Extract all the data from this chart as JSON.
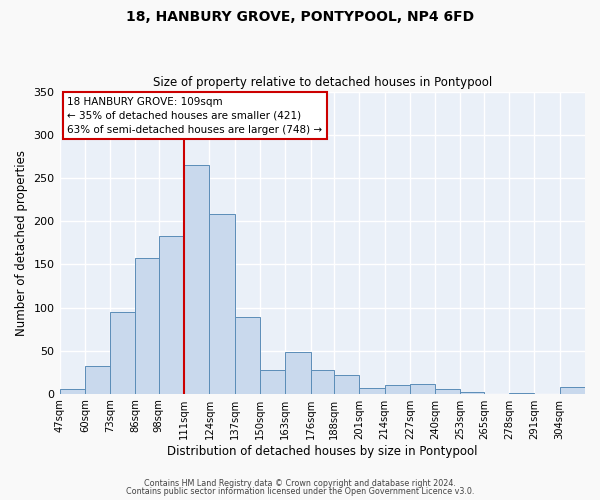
{
  "title": "18, HANBURY GROVE, PONTYPOOL, NP4 6FD",
  "subtitle": "Size of property relative to detached houses in Pontypool",
  "xlabel": "Distribution of detached houses by size in Pontypool",
  "ylabel": "Number of detached properties",
  "bin_labels": [
    "47sqm",
    "60sqm",
    "73sqm",
    "86sqm",
    "98sqm",
    "111sqm",
    "124sqm",
    "137sqm",
    "150sqm",
    "163sqm",
    "176sqm",
    "188sqm",
    "201sqm",
    "214sqm",
    "227sqm",
    "240sqm",
    "253sqm",
    "265sqm",
    "278sqm",
    "291sqm",
    "304sqm"
  ],
  "bar_heights": [
    6,
    32,
    95,
    158,
    183,
    265,
    208,
    89,
    28,
    48,
    28,
    22,
    7,
    10,
    11,
    5,
    2,
    0,
    1,
    0,
    8
  ],
  "bar_color": "#c9d9ed",
  "bar_edge_color": "#5b8db8",
  "bg_color": "#eaf0f8",
  "grid_color": "#ffffff",
  "vline_x": 111,
  "vline_color": "#cc0000",
  "annotation_title": "18 HANBURY GROVE: 109sqm",
  "annotation_line1": "← 35% of detached houses are smaller (421)",
  "annotation_line2": "63% of semi-detached houses are larger (748) →",
  "annotation_box_color": "#ffffff",
  "annotation_box_edge": "#cc0000",
  "ylim": [
    0,
    350
  ],
  "yticks": [
    0,
    50,
    100,
    150,
    200,
    250,
    300,
    350
  ],
  "footer1": "Contains HM Land Registry data © Crown copyright and database right 2024.",
  "footer2": "Contains public sector information licensed under the Open Government Licence v3.0.",
  "bin_edges": [
    47,
    60,
    73,
    86,
    98,
    111,
    124,
    137,
    150,
    163,
    176,
    188,
    201,
    214,
    227,
    240,
    253,
    265,
    278,
    291,
    304,
    317
  ]
}
